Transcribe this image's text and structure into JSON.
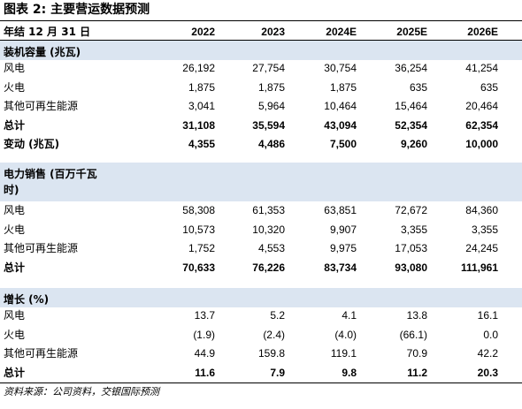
{
  "title": "图表 2: 主要营运数据预测",
  "table": {
    "header": [
      "年结 12 月 31 日",
      "2022",
      "2023",
      "2024E",
      "2025E",
      "2026E"
    ],
    "sections": [
      {
        "title": "装机容量 (兆瓦)",
        "rows": [
          [
            "风电",
            "26,192",
            "27,754",
            "30,754",
            "36,254",
            "41,254"
          ],
          [
            "火电",
            "1,875",
            "1,875",
            "1,875",
            "635",
            "635"
          ],
          [
            "其他可再生能源",
            "3,041",
            "5,964",
            "10,464",
            "15,464",
            "20,464"
          ],
          [
            "总计",
            "31,108",
            "35,594",
            "43,094",
            "52,354",
            "62,354"
          ],
          [
            "变动 (兆瓦)",
            "4,355",
            "4,486",
            "7,500",
            "9,260",
            "10,000"
          ]
        ]
      },
      {
        "title": "电力销售 (百万千瓦时)",
        "rows": [
          [
            "风电",
            "58,308",
            "61,353",
            "63,851",
            "72,672",
            "84,360"
          ],
          [
            "火电",
            "10,573",
            "10,320",
            "9,907",
            "3,355",
            "3,355"
          ],
          [
            "其他可再生能源",
            "1,752",
            "4,553",
            "9,975",
            "17,053",
            "24,245"
          ],
          [
            "总计",
            "70,633",
            "76,226",
            "83,734",
            "93,080",
            "111,961"
          ]
        ]
      },
      {
        "title": "增长 (%)",
        "rows": [
          [
            "风电",
            "13.7",
            "5.2",
            "4.1",
            "13.8",
            "16.1"
          ],
          [
            "火电",
            "(1.9)",
            "(2.4)",
            "(4.0)",
            "(66.1)",
            "0.0"
          ],
          [
            "其他可再生能源",
            "44.9",
            "159.8",
            "119.1",
            "70.9",
            "42.2"
          ],
          [
            "总计",
            "11.6",
            "7.9",
            "9.8",
            "11.2",
            "20.3"
          ]
        ]
      }
    ]
  },
  "source": "资料来源：公司资料，交银国际预测"
}
